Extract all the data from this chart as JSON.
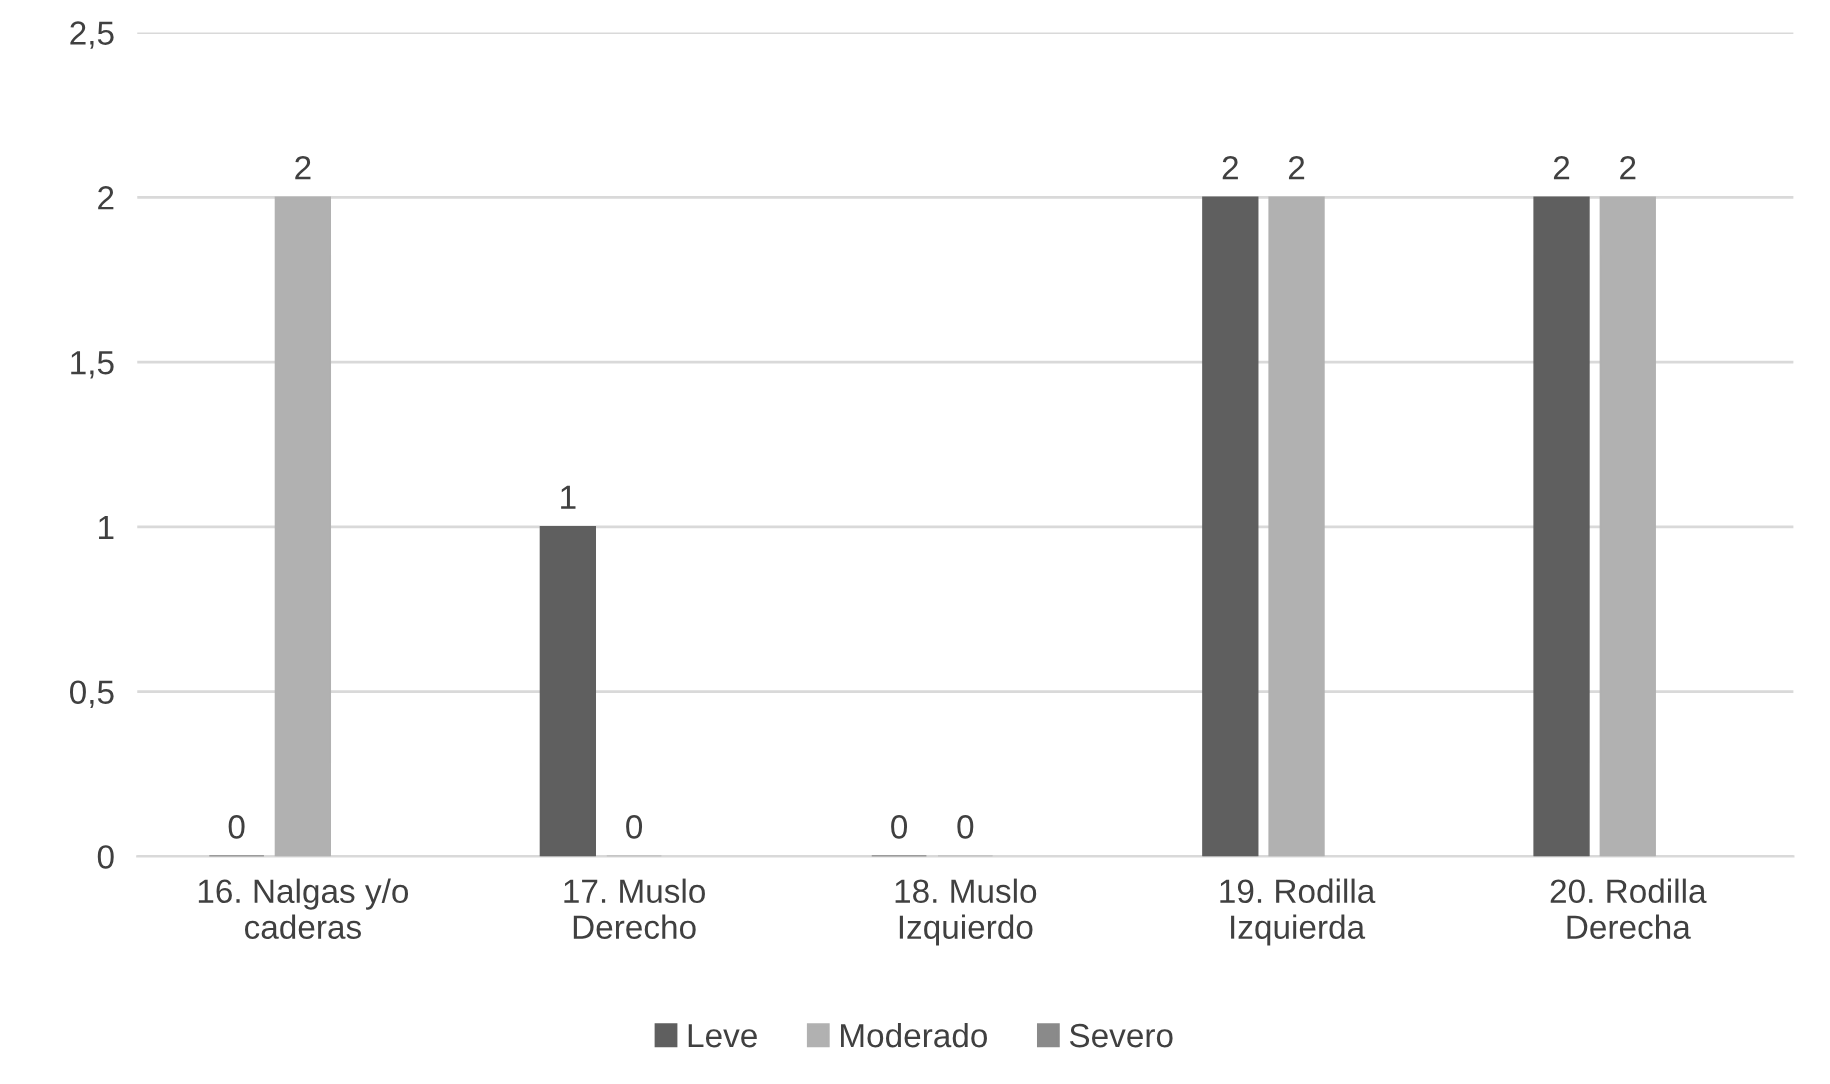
{
  "chart_data": {
    "type": "bar",
    "categories": [
      "16. Nalgas y/o\ncaderas",
      "17. Muslo\nDerecho",
      "18. Muslo\nIzquierdo",
      "19. Rodilla\nIzquierda",
      "20. Rodilla\nDerecha"
    ],
    "series": [
      {
        "name": "Leve",
        "color": "#5f5f5f",
        "values": [
          0,
          1,
          0,
          2,
          2
        ]
      },
      {
        "name": "Moderado",
        "color": "#b1b1b1",
        "values": [
          2,
          0,
          0,
          2,
          2
        ]
      },
      {
        "name": "Severo",
        "color": "#8a8a8a",
        "values": [
          null,
          null,
          null,
          null,
          null
        ]
      }
    ],
    "ylim": [
      0,
      2.5
    ],
    "yticks": [
      {
        "value": 0,
        "label": "0"
      },
      {
        "value": 0.5,
        "label": "0,5"
      },
      {
        "value": 1,
        "label": "1"
      },
      {
        "value": 1.5,
        "label": "1,5"
      },
      {
        "value": 2,
        "label": "2"
      },
      {
        "value": 2.5,
        "label": "2,5"
      }
    ],
    "grid": "y",
    "legend": "bottom",
    "data_labels": true
  }
}
